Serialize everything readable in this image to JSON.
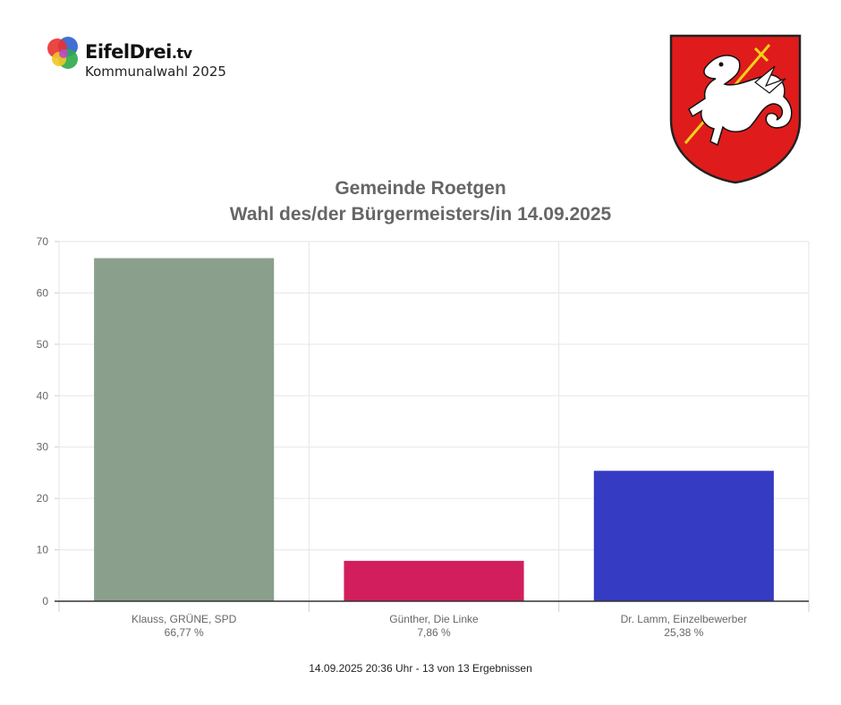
{
  "header": {
    "brand_name": "EifelDrei",
    "brand_suffix": ".tv",
    "subtitle": "Kommunalwahl 2025"
  },
  "crest": {
    "icon": "coat-of-arms-dragon-icon",
    "field_color": "#e01b1b",
    "dragon_color": "#ffffff",
    "sword_color": "#f2d21b"
  },
  "footer": {
    "text": "14.09.2025 20:36 Uhr - 13 von 13 Ergebnissen"
  },
  "chart_data": {
    "type": "bar",
    "title": "Gemeinde Roetgen",
    "subtitle": "Wahl des/der Bürgermeisters/in 14.09.2025",
    "categories": [
      "Klauss, GRÜNE, SPD",
      "Günther, Die Linke",
      "Dr. Lamm, Einzelbewerber"
    ],
    "value_labels": [
      "66,77 %",
      "7,86 %",
      "25,38 %"
    ],
    "values": [
      66.77,
      7.86,
      25.38
    ],
    "colors": [
      "#8aa08c",
      "#d21e5d",
      "#353bc3"
    ],
    "ylim": [
      0,
      70
    ],
    "yticks": [
      0,
      10,
      20,
      30,
      40,
      50,
      60,
      70
    ],
    "grid": true,
    "legend": "none"
  }
}
